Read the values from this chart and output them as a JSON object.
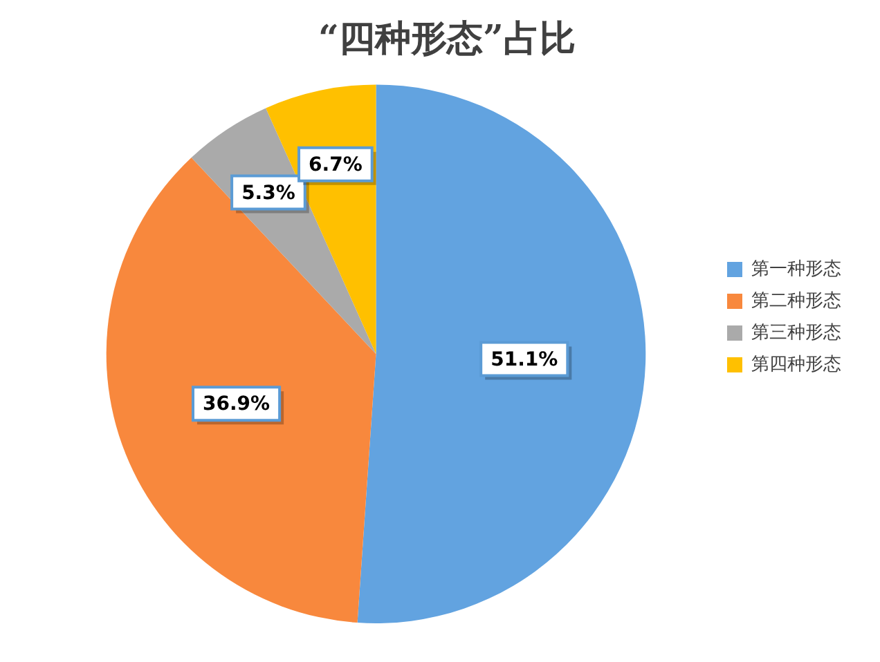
{
  "chart_data": {
    "type": "pie",
    "title": "“四种形态”占比",
    "categories": [
      "第一种形态",
      "第二种形态",
      "第三种形态",
      "第四种形态"
    ],
    "values": [
      51.1,
      36.9,
      5.3,
      6.7
    ],
    "colors": [
      "#62a3e0",
      "#f8883d",
      "#aaaaaa",
      "#ffc000"
    ],
    "value_labels": [
      "51.1%",
      "36.9%",
      "5.3%",
      "6.7%"
    ],
    "legend": "right"
  }
}
